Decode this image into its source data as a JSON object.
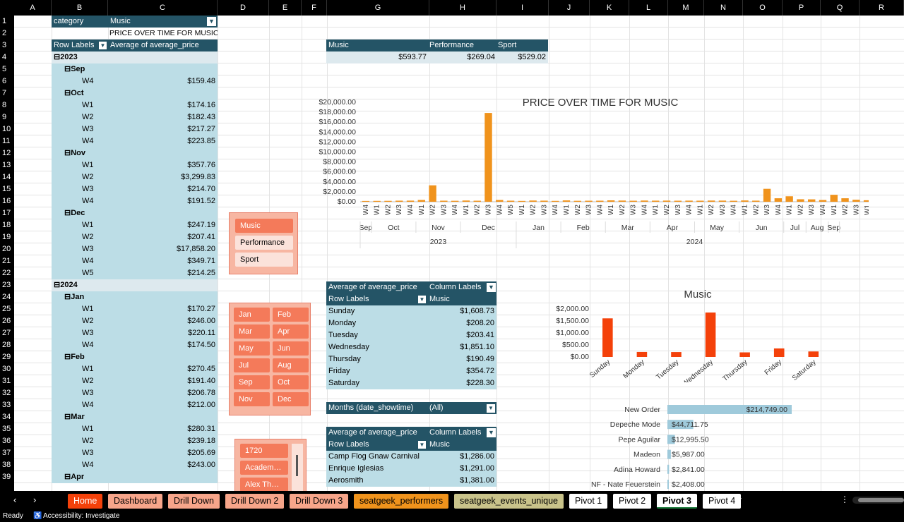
{
  "columns": [
    "A",
    "B",
    "C",
    "D",
    "E",
    "F",
    "G",
    "H",
    "I",
    "J",
    "K",
    "L",
    "M",
    "N",
    "O",
    "P",
    "Q",
    "R"
  ],
  "rows": [
    "1",
    "2",
    "3",
    "4",
    "5",
    "6",
    "7",
    "8",
    "9",
    "10",
    "11",
    "12",
    "13",
    "14",
    "15",
    "16",
    "17",
    "18",
    "19",
    "20",
    "21",
    "22",
    "23",
    "24",
    "25",
    "26",
    "27",
    "28",
    "29",
    "30",
    "31",
    "32",
    "33",
    "34",
    "35",
    "36",
    "37",
    "38",
    "39"
  ],
  "pivot_main": {
    "filter_label": "category",
    "filter_value": "Music",
    "title": "PRICE OVER TIME FOR MUSIC",
    "row_labels": "Row Labels",
    "value_header": "Average of average_price",
    "rows": [
      {
        "label": "⊟2023",
        "value": ""
      },
      {
        "label": "⊟Sep",
        "value": ""
      },
      {
        "label": "W4",
        "value": "$159.48"
      },
      {
        "label": "⊟Oct",
        "value": ""
      },
      {
        "label": "W1",
        "value": "$174.16"
      },
      {
        "label": "W2",
        "value": "$182.43"
      },
      {
        "label": "W3",
        "value": "$217.27"
      },
      {
        "label": "W4",
        "value": "$223.85"
      },
      {
        "label": "⊟Nov",
        "value": ""
      },
      {
        "label": "W1",
        "value": "$357.76"
      },
      {
        "label": "W2",
        "value": "$3,299.83"
      },
      {
        "label": "W3",
        "value": "$214.70"
      },
      {
        "label": "W4",
        "value": "$191.52"
      },
      {
        "label": "⊟Dec",
        "value": ""
      },
      {
        "label": "W1",
        "value": "$247.19"
      },
      {
        "label": "W2",
        "value": "$207.41"
      },
      {
        "label": "W3",
        "value": "$17,858.20"
      },
      {
        "label": "W4",
        "value": "$349.71"
      },
      {
        "label": "W5",
        "value": "$214.25"
      },
      {
        "label": "⊟2024",
        "value": ""
      },
      {
        "label": "⊟Jan",
        "value": ""
      },
      {
        "label": "W1",
        "value": "$170.27"
      },
      {
        "label": "W2",
        "value": "$246.00"
      },
      {
        "label": "W3",
        "value": "$220.11"
      },
      {
        "label": "W4",
        "value": "$174.50"
      },
      {
        "label": "⊟Feb",
        "value": ""
      },
      {
        "label": "W1",
        "value": "$270.45"
      },
      {
        "label": "W2",
        "value": "$191.40"
      },
      {
        "label": "W3",
        "value": "$206.78"
      },
      {
        "label": "W4",
        "value": "$212.00"
      },
      {
        "label": "⊟Mar",
        "value": ""
      },
      {
        "label": "W1",
        "value": "$280.31"
      },
      {
        "label": "W2",
        "value": "$239.18"
      },
      {
        "label": "W3",
        "value": "$205.69"
      },
      {
        "label": "W4",
        "value": "$243.00"
      },
      {
        "label": "⊟Apr",
        "value": ""
      }
    ]
  },
  "category_summary": {
    "headers": [
      "Music",
      "Performance",
      "Sport"
    ],
    "values": [
      "$593.77",
      "$269.04",
      "$529.02"
    ]
  },
  "slicer_category": [
    "Music",
    "Performance",
    "Sport"
  ],
  "slicer_months": [
    "Jan",
    "Feb",
    "Mar",
    "Apr",
    "May",
    "Jun",
    "Jul",
    "Aug",
    "Sep",
    "Oct",
    "Nov",
    "Dec"
  ],
  "slicer_performers": [
    "1720",
    "Academ…",
    "Alex Th…"
  ],
  "pivot_weekday": {
    "header1": "Average of average_price",
    "header2": "Column Labels",
    "row_labels": "Row Labels",
    "col_value": "Music",
    "rows": [
      {
        "label": "Sunday",
        "value": "$1,608.73"
      },
      {
        "label": "Monday",
        "value": "$208.20"
      },
      {
        "label": "Tuesday",
        "value": "$203.41"
      },
      {
        "label": "Wednesday",
        "value": "$1,851.10"
      },
      {
        "label": "Thursday",
        "value": "$190.49"
      },
      {
        "label": "Friday",
        "value": "$354.72"
      },
      {
        "label": "Saturday",
        "value": "$228.30"
      }
    ]
  },
  "months_filter": {
    "label": "Months (date_showtime)",
    "value": "(All)"
  },
  "pivot_performer": {
    "header1": "Average of average_price",
    "header2": "Column Labels",
    "row_labels": "Row Labels",
    "col_value": "Music",
    "rows": [
      {
        "label": "Camp Flog Gnaw Carnival",
        "value": "$1,286.00"
      },
      {
        "label": "Enrique Iglesias",
        "value": "$1,291.00"
      },
      {
        "label": "Aerosmith",
        "value": "$1,381.00"
      }
    ]
  },
  "chart_data": [
    {
      "type": "bar",
      "title": "PRICE OVER TIME FOR MUSIC",
      "ylim": [
        0,
        20000
      ],
      "yticks": [
        "$0.00",
        "$2,000.00",
        "$4,000.00",
        "$6,000.00",
        "$8,000.00",
        "$10,000.00",
        "$12,000.00",
        "$14,000.00",
        "$16,000.00",
        "$18,000.00",
        "$20,000.00"
      ],
      "categories": [
        "W4",
        "W1",
        "W2",
        "W3",
        "W4",
        "W1",
        "W2",
        "W3",
        "W4",
        "W1",
        "W2",
        "W3",
        "W4",
        "W5",
        "W1",
        "W2",
        "W3",
        "W4",
        "W1",
        "W2",
        "W3",
        "W4",
        "W1",
        "W2",
        "W3",
        "W4",
        "W1",
        "W2",
        "W3",
        "W4",
        "W1",
        "W2",
        "W3",
        "W4",
        "W1",
        "W2",
        "W3",
        "W4",
        "W1",
        "W2",
        "W3",
        "W4",
        "W1",
        "W2",
        "W3",
        "W1"
      ],
      "values": [
        159,
        174,
        182,
        217,
        224,
        358,
        3300,
        215,
        192,
        247,
        207,
        17858,
        350,
        214,
        170,
        246,
        220,
        175,
        270,
        191,
        207,
        212,
        280,
        239,
        206,
        243,
        220,
        230,
        210,
        225,
        215,
        240,
        230,
        200,
        260,
        220,
        2600,
        700,
        1100,
        500,
        480,
        350,
        1400,
        700,
        400,
        300
      ],
      "months": [
        {
          "label": "Sep",
          "span": 1
        },
        {
          "label": "Oct",
          "span": 4
        },
        {
          "label": "Nov",
          "span": 4
        },
        {
          "label": "Dec",
          "span": 5
        },
        {
          "label": "Jan",
          "span": 4
        },
        {
          "label": "Feb",
          "span": 4
        },
        {
          "label": "Mar",
          "span": 4
        },
        {
          "label": "Apr",
          "span": 4
        },
        {
          "label": "May",
          "span": 4
        },
        {
          "label": "Jun",
          "span": 4
        },
        {
          "label": "Jul",
          "span": 2
        },
        {
          "label": "Aug",
          "span": 2
        },
        {
          "label": "Sep",
          "span": 1
        }
      ],
      "years": [
        {
          "label": "2023",
          "span": 14
        },
        {
          "label": "2024",
          "span": 32
        }
      ],
      "color": "#f0931c"
    },
    {
      "type": "bar",
      "title": "Music",
      "ylim": [
        0,
        2000
      ],
      "yticks": [
        "$0.00",
        "$500.00",
        "$1,000.00",
        "$1,500.00",
        "$2,000.00"
      ],
      "categories": [
        "Sunday",
        "Monday",
        "Tuesday",
        "Wednesday",
        "Thursday",
        "Friday",
        "Saturday"
      ],
      "values": [
        1608.73,
        208.2,
        203.41,
        1851.1,
        190.49,
        354.72,
        228.3
      ],
      "color": "#f4410a"
    },
    {
      "type": "bar",
      "orientation": "horizontal",
      "categories": [
        "New Order",
        "Depeche Mode",
        "Pepe Aguilar",
        "Madeon",
        "Adina Howard",
        "NF - Nate Feuerstein"
      ],
      "values": [
        214749.0,
        44711.75,
        12995.5,
        5987.0,
        2841.0,
        2408.0
      ],
      "labels": [
        "$214,749.00",
        "$44,711.75",
        "$12,995.50",
        "$5,987.00",
        "$2,841.00",
        "$2,408.00"
      ],
      "color": "#9fcadb"
    }
  ],
  "tabs": [
    {
      "label": "Home",
      "bg": "#f4410a",
      "fg": "#ffffff"
    },
    {
      "label": "Dashboard",
      "bg": "#f7a58a",
      "fg": "#000000"
    },
    {
      "label": "Drill Down",
      "bg": "#f7a58a",
      "fg": "#000000"
    },
    {
      "label": "Drill Down 2",
      "bg": "#f7a58a",
      "fg": "#000000"
    },
    {
      "label": "Drill Down 3",
      "bg": "#f7a58a",
      "fg": "#000000"
    },
    {
      "label": "seatgeek_performers",
      "bg": "#f0931c",
      "fg": "#000000"
    },
    {
      "label": "seatgeek_events_unique",
      "bg": "#c9c38a",
      "fg": "#000000"
    },
    {
      "label": "Pivot 1",
      "bg": "#ffffff",
      "fg": "#000000"
    },
    {
      "label": "Pivot 2",
      "bg": "#ffffff",
      "fg": "#000000"
    },
    {
      "label": "Pivot 3",
      "bg": "#ffffff",
      "fg": "#000000",
      "active": true
    },
    {
      "label": "Pivot 4",
      "bg": "#ffffff",
      "fg": "#000000"
    }
  ],
  "status": {
    "ready": "Ready",
    "accessibility": "Accessibility: Investigate"
  }
}
